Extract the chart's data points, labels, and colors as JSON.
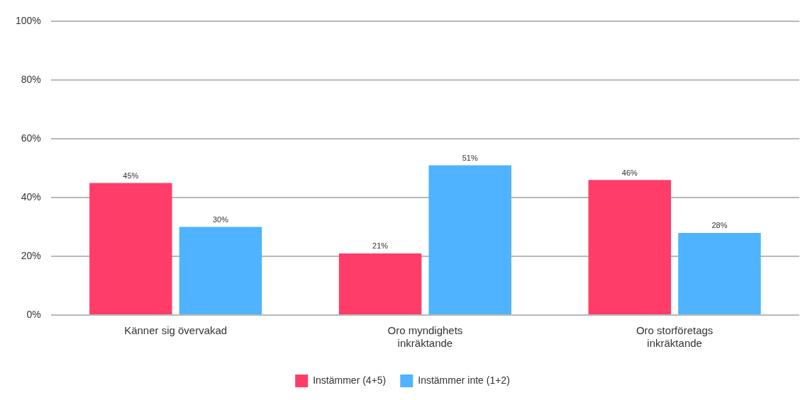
{
  "chart_data": {
    "type": "bar",
    "categories": [
      "Känner sig övervakad",
      "Oro myndighets inkräktande",
      "Oro storföretags inkräktande"
    ],
    "series": [
      {
        "name": "Instämmer (4+5)",
        "color": "#ff3d68",
        "values": [
          45,
          21,
          46
        ],
        "value_labels": [
          "45%",
          "21%",
          "46%"
        ]
      },
      {
        "name": "Instämmer inte (1+2)",
        "color": "#4fb3ff",
        "values": [
          30,
          51,
          28
        ],
        "value_labels": [
          "30%",
          "51%",
          "28%"
        ]
      }
    ],
    "ylim": [
      0,
      100
    ],
    "yticks": [
      {
        "value": 0,
        "label": "0%"
      },
      {
        "value": 20,
        "label": "20%"
      },
      {
        "value": 40,
        "label": "40%"
      },
      {
        "value": 60,
        "label": "60%"
      },
      {
        "value": 80,
        "label": "80%"
      },
      {
        "value": 100,
        "label": "100%"
      }
    ],
    "grid": "y",
    "legend": "bottom"
  }
}
